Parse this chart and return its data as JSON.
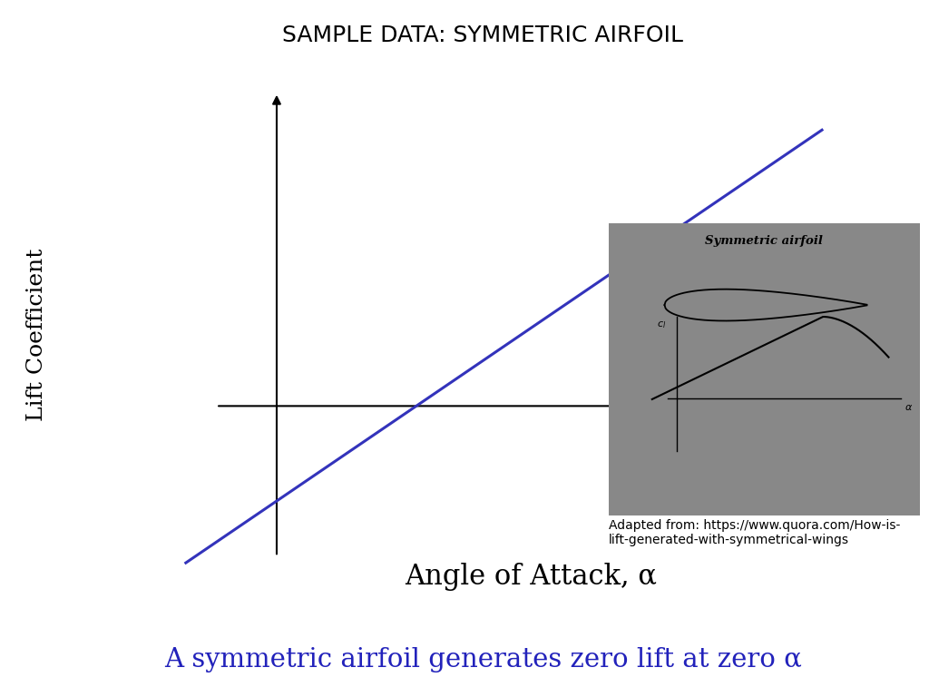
{
  "title": "SAMPLE DATA: SYMMETRIC AIRFOIL",
  "title_fontsize": 18,
  "title_fontweight": "normal",
  "xlabel": "Angle of Attack, α",
  "xlabel_fontsize": 22,
  "ylabel": "Lift Coefficient",
  "ylabel_fontsize": 18,
  "subtitle": "A symmetric airfoil generates zero lift at zero α",
  "subtitle_fontsize": 21,
  "subtitle_color": "#2222bb",
  "line_color": "#3333bb",
  "line_width": 2.2,
  "background_color": "#ffffff",
  "inset_bg_color": "#888888",
  "inset_title": "Symmetric airfoil",
  "credit_text": "Adapted from: https://www.quora.com/How-is-\nlift-generated-with-symmetrical-wings",
  "credit_fontsize": 10
}
